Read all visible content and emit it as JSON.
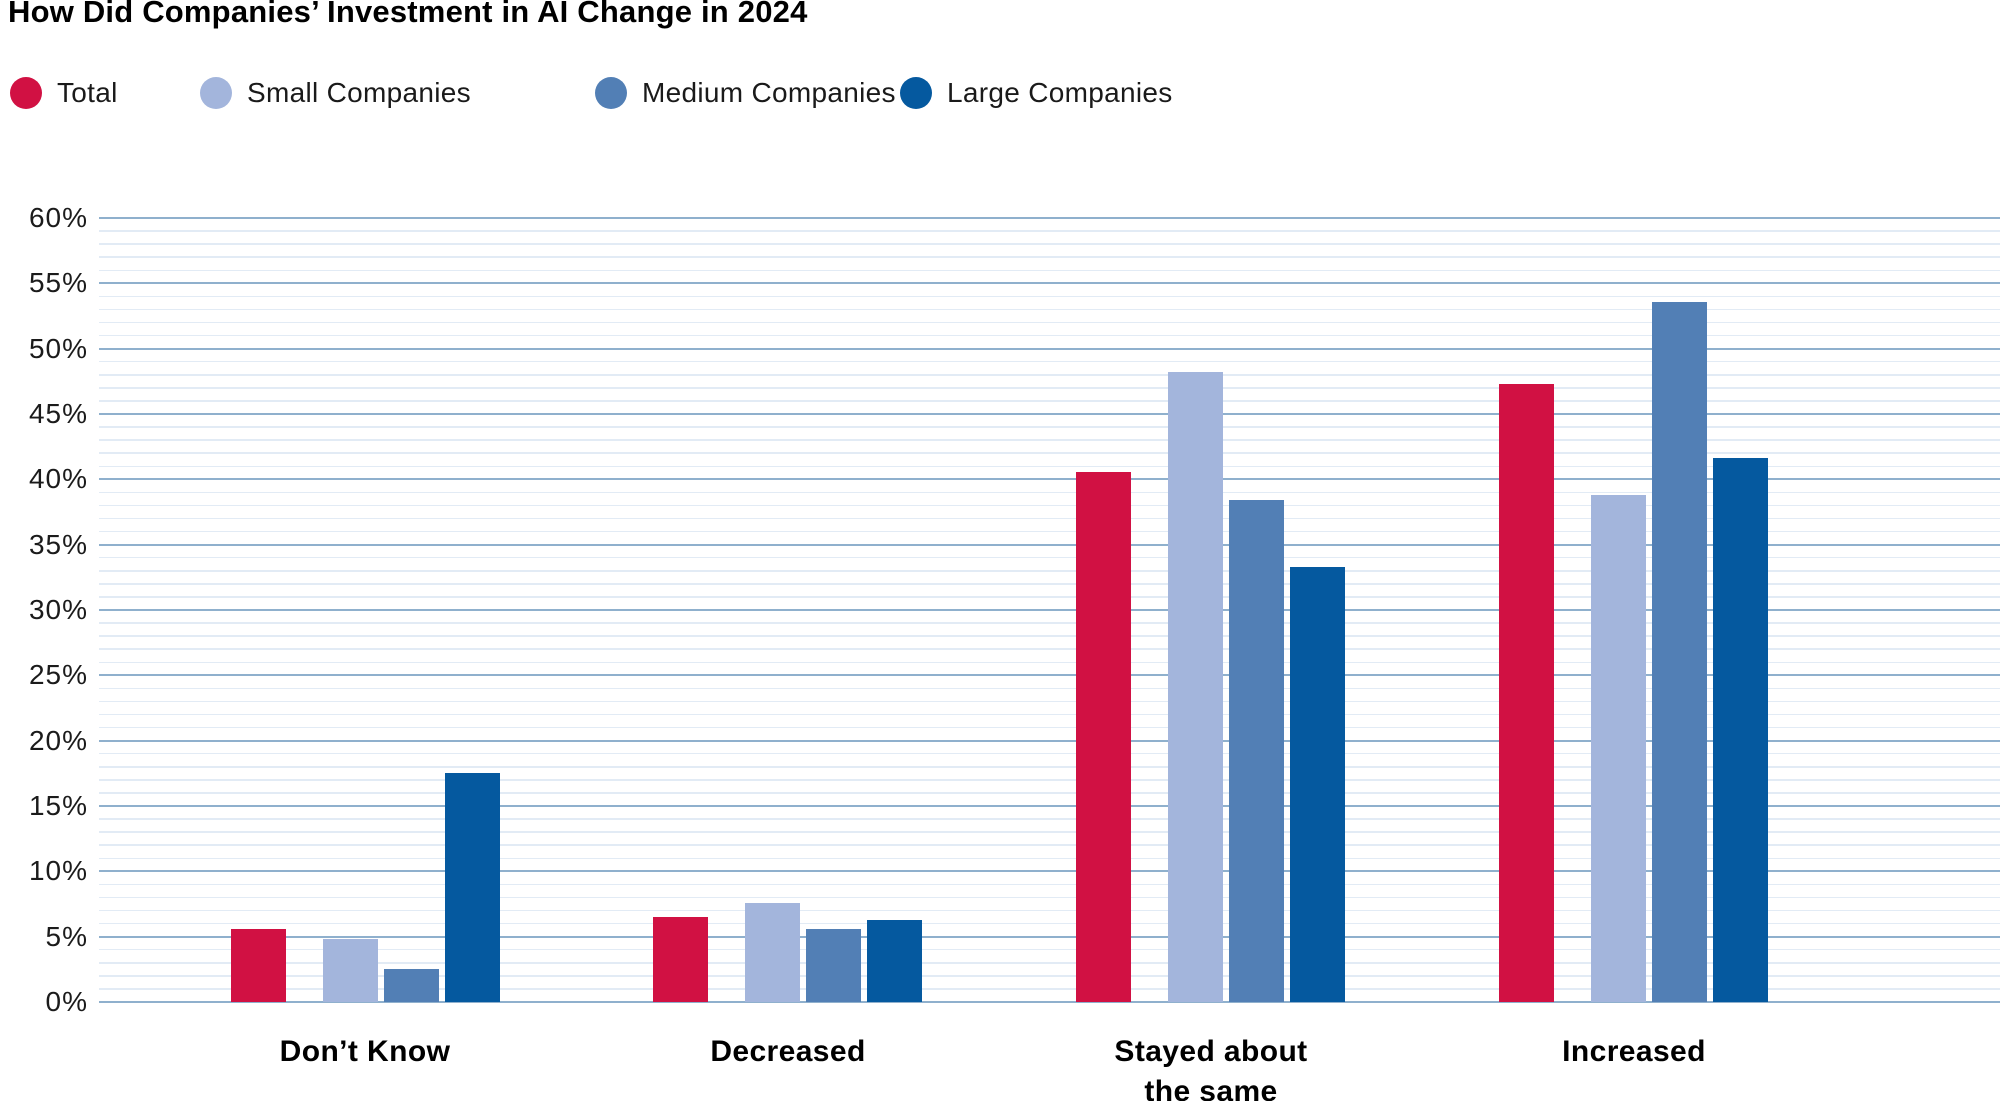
{
  "title": "How Did Companies’ Investment in AI Change in 2024",
  "chart_data": {
    "type": "bar",
    "title": "How Did Companies’ Investment in AI Change in 2024",
    "categories": [
      "Don’t Know",
      "Decreased",
      "Stayed about\nthe same",
      "Increased"
    ],
    "series": [
      {
        "name": "Total",
        "color": "#D11143",
        "values": [
          5.6,
          6.5,
          40.6,
          47.3
        ]
      },
      {
        "name": "Small Companies",
        "color": "#A3B5DC",
        "values": [
          4.8,
          7.6,
          48.2,
          38.8
        ]
      },
      {
        "name": "Medium Companies",
        "color": "#527FB5",
        "values": [
          2.5,
          5.6,
          38.4,
          53.6
        ]
      },
      {
        "name": "Large Companies",
        "color": "#05599F",
        "values": [
          17.5,
          6.3,
          33.3,
          41.6
        ]
      }
    ],
    "xlabel": "",
    "ylabel": "",
    "y_axis": {
      "min": 0,
      "max": 60,
      "major_step": 5,
      "minor_step": 1,
      "tick_suffix": "%"
    },
    "ylim": [
      0,
      60
    ],
    "grid": {
      "enabled": true,
      "major_color": "#8FB0CD",
      "minor_color": "#E2EBF5"
    },
    "legend_position": "top"
  }
}
